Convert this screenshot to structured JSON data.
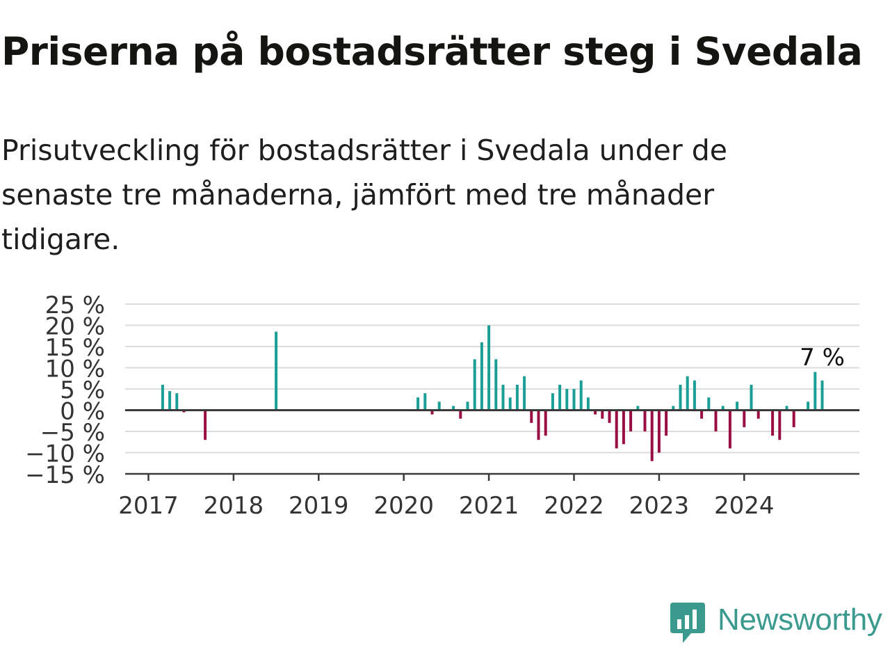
{
  "header": {
    "title": "Priserna på bostadsrätter steg i Svedala",
    "subtitle": "Prisutveckling för bostadsrätter i Svedala under de senaste tre månaderna, jämfört med tre månader tidigare."
  },
  "brand": {
    "name": "Newsworthy",
    "icon": "newsworthy-logo-icon",
    "color": "#3a9a8e"
  },
  "colors": {
    "positive": "#1a9e96",
    "negative": "#9a0f43",
    "grid": "#dcdcdc",
    "axis": "#3a3a3a"
  },
  "chart_data": {
    "type": "bar",
    "title": "",
    "xlabel": "",
    "ylabel": "",
    "ylim": [
      -15,
      25
    ],
    "y_ticks": [
      -15,
      -10,
      -5,
      0,
      5,
      10,
      15,
      20,
      25
    ],
    "y_tick_labels": [
      "−15 %",
      "−10 %",
      "−5 %",
      "0 %",
      "5 %",
      "10 %",
      "15 %",
      "20 %",
      "25 %"
    ],
    "x_ticks": [
      "2017",
      "2018",
      "2019",
      "2020",
      "2021",
      "2022",
      "2023",
      "2024"
    ],
    "grid": true,
    "annotation": {
      "text": "7 %",
      "date": "2024-12"
    },
    "series": [
      {
        "unit": "%",
        "points": [
          [
            "2017-03",
            6
          ],
          [
            "2017-04",
            4.5
          ],
          [
            "2017-05",
            4
          ],
          [
            "2017-06",
            -0.5
          ],
          [
            "2017-09",
            -7
          ],
          [
            "2018-07",
            18.5
          ],
          [
            "2020-03",
            3
          ],
          [
            "2020-04",
            4
          ],
          [
            "2020-05",
            -1
          ],
          [
            "2020-06",
            2
          ],
          [
            "2020-08",
            1
          ],
          [
            "2020-09",
            -2
          ],
          [
            "2020-10",
            2
          ],
          [
            "2020-11",
            12
          ],
          [
            "2020-12",
            16
          ],
          [
            "2021-01",
            20
          ],
          [
            "2021-02",
            12
          ],
          [
            "2021-03",
            6
          ],
          [
            "2021-04",
            3
          ],
          [
            "2021-05",
            6
          ],
          [
            "2021-06",
            8
          ],
          [
            "2021-07",
            -3
          ],
          [
            "2021-08",
            -7
          ],
          [
            "2021-09",
            -6
          ],
          [
            "2021-10",
            4
          ],
          [
            "2021-11",
            6
          ],
          [
            "2021-12",
            5
          ],
          [
            "2022-01",
            5
          ],
          [
            "2022-02",
            7
          ],
          [
            "2022-03",
            3
          ],
          [
            "2022-04",
            -1
          ],
          [
            "2022-05",
            -2
          ],
          [
            "2022-06",
            -3
          ],
          [
            "2022-07",
            -9
          ],
          [
            "2022-08",
            -8
          ],
          [
            "2022-09",
            -5
          ],
          [
            "2022-10",
            1
          ],
          [
            "2022-11",
            -5
          ],
          [
            "2022-12",
            -12
          ],
          [
            "2023-01",
            -10
          ],
          [
            "2023-02",
            -6
          ],
          [
            "2023-03",
            1
          ],
          [
            "2023-04",
            6
          ],
          [
            "2023-05",
            8
          ],
          [
            "2023-06",
            7
          ],
          [
            "2023-07",
            -2
          ],
          [
            "2023-08",
            3
          ],
          [
            "2023-09",
            -5
          ],
          [
            "2023-10",
            1
          ],
          [
            "2023-11",
            -9
          ],
          [
            "2023-12",
            2
          ],
          [
            "2024-01",
            -4
          ],
          [
            "2024-02",
            6
          ],
          [
            "2024-03",
            -2
          ],
          [
            "2024-05",
            -6
          ],
          [
            "2024-06",
            -7
          ],
          [
            "2024-07",
            1
          ],
          [
            "2024-08",
            -4
          ],
          [
            "2024-10",
            2
          ],
          [
            "2024-11",
            9
          ],
          [
            "2024-12",
            7
          ]
        ]
      }
    ]
  }
}
